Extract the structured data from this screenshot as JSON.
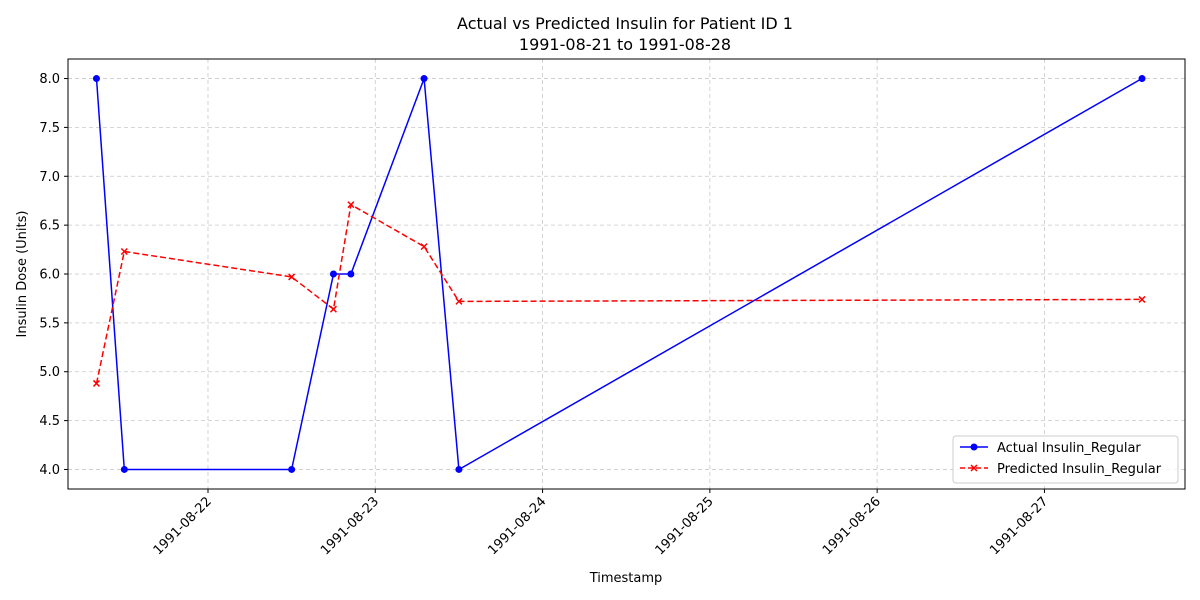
{
  "chart_data": {
    "type": "line",
    "title": "Actual vs Predicted Insulin for Patient ID 1",
    "subtitle": "1991-08-21 to 1991-08-28",
    "xlabel": "Timestamp",
    "ylabel": "Insulin Dose (Units)",
    "x_axis": "date",
    "xlim": [
      "1991-08-21T03:55",
      "1991-08-27T20:10"
    ],
    "ylim": [
      3.8,
      8.2
    ],
    "x_ticks": [
      "1991-08-22",
      "1991-08-23",
      "1991-08-24",
      "1991-08-25",
      "1991-08-26",
      "1991-08-27"
    ],
    "y_ticks": [
      "4.0",
      "4.5",
      "5.0",
      "5.5",
      "6.0",
      "6.5",
      "7.0",
      "7.5",
      "8.0"
    ],
    "grid": true,
    "legend_position": "lower-right",
    "series": [
      {
        "name": "Actual Insulin_Regular",
        "color": "#0000ff",
        "line_style": "solid",
        "marker": "circle",
        "x": [
          "1991-08-21T08:00",
          "1991-08-21T12:00",
          "1991-08-22T12:00",
          "1991-08-22T18:00",
          "1991-08-22T20:30",
          "1991-08-23T07:00",
          "1991-08-23T12:00",
          "1991-08-27T14:00"
        ],
        "values": [
          8,
          4,
          4,
          6,
          6,
          8,
          4,
          8
        ]
      },
      {
        "name": "Predicted Insulin_Regular",
        "color": "#ff0000",
        "line_style": "dashed",
        "marker": "x",
        "x": [
          "1991-08-21T08:00",
          "1991-08-21T12:00",
          "1991-08-22T12:00",
          "1991-08-22T18:00",
          "1991-08-22T20:30",
          "1991-08-23T07:00",
          "1991-08-23T12:00",
          "1991-08-27T14:00"
        ],
        "values": [
          4.88,
          6.23,
          5.97,
          5.64,
          6.71,
          6.28,
          5.72,
          5.74
        ]
      }
    ]
  }
}
